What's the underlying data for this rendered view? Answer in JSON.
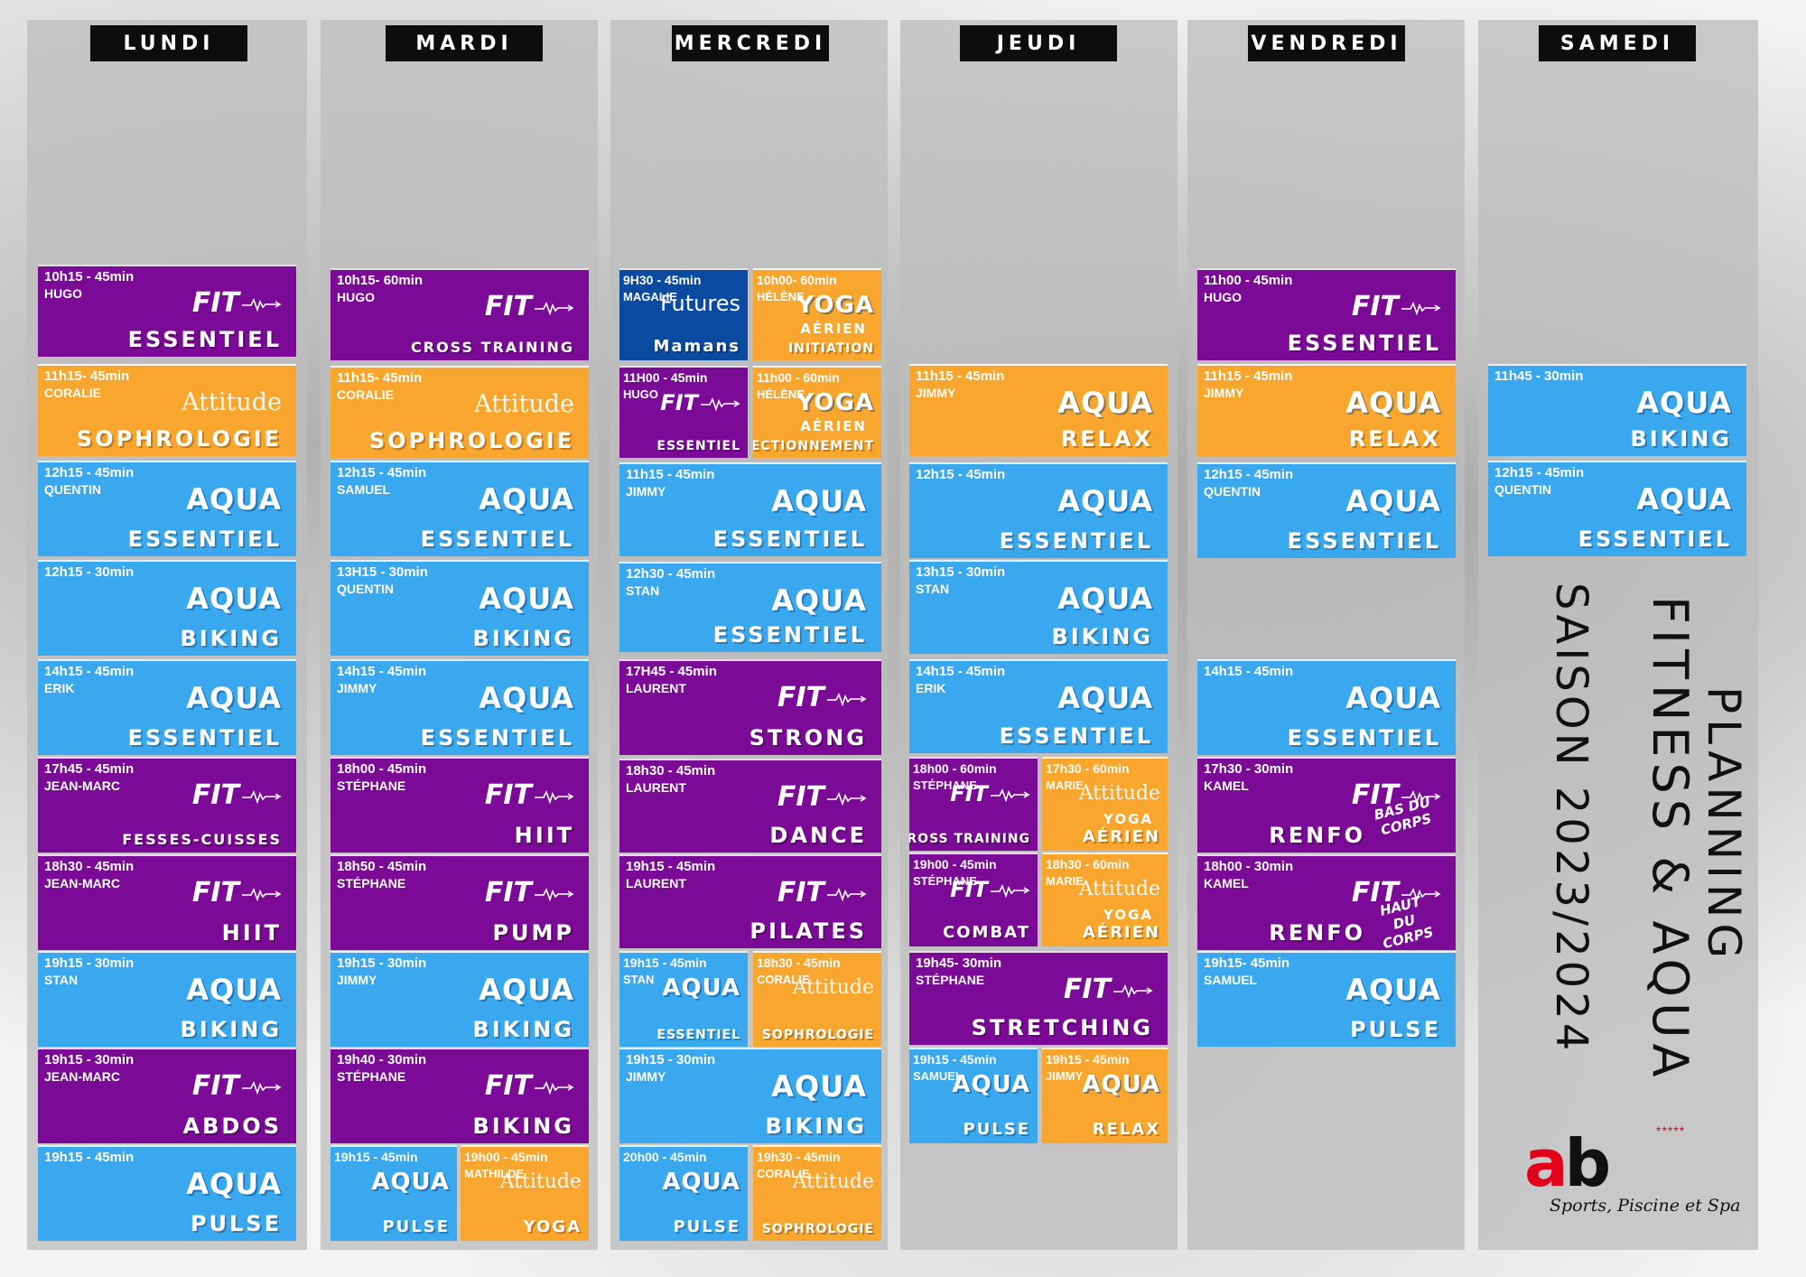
{
  "days": [
    "LUNDI",
    "MARDI",
    "MERCREDI",
    "JEUDI",
    "VENDREDI",
    "SAMEDI"
  ],
  "title": {
    "line1": "PLANNING",
    "line2": "FITNESS & AQUA",
    "season": "SAISON 2023/2024"
  },
  "logo": {
    "mark_a": "a",
    "mark_b": "b",
    "stars": "*****",
    "tagline": "Sports, Piscine et Spa"
  },
  "colors": {
    "fit": "#7b0a96",
    "aqua": "#3aa8ee",
    "attitude": "#f8a62e",
    "futures": "#0b4aa1"
  },
  "classes": [
    {
      "day": 0,
      "time": "10h15 - 45min",
      "coach": "HUGO",
      "brand": "FIT",
      "name": "ESSENTIEL",
      "color": "purple"
    },
    {
      "day": 0,
      "time": "11h15- 45min",
      "coach": "CORALIE",
      "brand": "Attitude",
      "name": "SOPHROLOGIE",
      "color": "orange"
    },
    {
      "day": 0,
      "time": "12h15 - 45min",
      "coach": "QUENTIN",
      "brand": "AQUA",
      "name": "ESSENTIEL",
      "color": "blue"
    },
    {
      "day": 0,
      "time": "12h15 - 30min",
      "coach": "",
      "brand": "AQUA",
      "name": "BIKING",
      "color": "blue"
    },
    {
      "day": 0,
      "time": "14h15 - 45min",
      "coach": "ERIK",
      "brand": "AQUA",
      "name": "ESSENTIEL",
      "color": "blue"
    },
    {
      "day": 0,
      "time": "17h45 - 45min",
      "coach": "JEAN-MARC",
      "brand": "FIT",
      "name": "FESSES-CUISSES",
      "color": "purple"
    },
    {
      "day": 0,
      "time": "18h30 - 45min",
      "coach": "JEAN-MARC",
      "brand": "FIT",
      "name": "HIIT",
      "color": "purple"
    },
    {
      "day": 0,
      "time": "19h15 - 30min",
      "coach": "STAN",
      "brand": "AQUA",
      "name": "BIKING",
      "color": "blue"
    },
    {
      "day": 0,
      "time": "19h15 - 30min",
      "coach": "JEAN-MARC",
      "brand": "FIT",
      "name": "ABDOS",
      "color": "purple"
    },
    {
      "day": 0,
      "time": "19h15 - 45min",
      "coach": "",
      "brand": "AQUA",
      "name": "PULSE",
      "color": "blue"
    },
    {
      "day": 1,
      "time": "10h15- 60min",
      "coach": "HUGO",
      "brand": "FIT",
      "name": "CROSS TRAINING",
      "color": "purple"
    },
    {
      "day": 1,
      "time": "11h15- 45min",
      "coach": "CORALIE",
      "brand": "Attitude",
      "name": "SOPHROLOGIE",
      "color": "orange"
    },
    {
      "day": 1,
      "time": "12h15 - 45min",
      "coach": "SAMUEL",
      "brand": "AQUA",
      "name": "ESSENTIEL",
      "color": "blue"
    },
    {
      "day": 1,
      "time": "13H15 - 30min",
      "coach": "QUENTIN",
      "brand": "AQUA",
      "name": "BIKING",
      "color": "blue"
    },
    {
      "day": 1,
      "time": "14h15 - 45min",
      "coach": "JIMMY",
      "brand": "AQUA",
      "name": "ESSENTIEL",
      "color": "blue"
    },
    {
      "day": 1,
      "time": "18h00 - 45min",
      "coach": "STÉPHANE",
      "brand": "FIT",
      "name": "HIIT",
      "color": "purple"
    },
    {
      "day": 1,
      "time": "18h50 - 45min",
      "coach": "STÉPHANE",
      "brand": "FIT",
      "name": "PUMP",
      "color": "purple"
    },
    {
      "day": 1,
      "time": "19h15 - 30min",
      "coach": "JIMMY",
      "brand": "AQUA",
      "name": "BIKING",
      "color": "blue"
    },
    {
      "day": 1,
      "time": "19h40 - 30min",
      "coach": "STÉPHANE",
      "brand": "FIT",
      "name": "BIKING",
      "color": "purple"
    },
    {
      "day": 1,
      "time": "19h15 - 45min",
      "coach": "",
      "brand": "AQUA",
      "name": "PULSE",
      "color": "blue"
    },
    {
      "day": 1,
      "time": "19h00 - 45min",
      "coach": "MATHILDE",
      "brand": "Attitude",
      "name": "YOGA",
      "color": "orange"
    },
    {
      "day": 2,
      "time": "9H30 - 45min",
      "coach": "MAGALIE",
      "brand": "Futures",
      "name": "Mamans",
      "color": "navy"
    },
    {
      "day": 2,
      "time": "10h00- 60min",
      "coach": "HÉLÈNE",
      "brand": "YOGA",
      "sub": "AÉRIEN",
      "name": "INITIATION",
      "color": "orange"
    },
    {
      "day": 2,
      "time": "11H00 - 45min",
      "coach": "HUGO",
      "brand": "FIT",
      "name": "ESSENTIEL",
      "color": "purple"
    },
    {
      "day": 2,
      "time": "11h00 - 60min",
      "coach": "HÉLÈNE",
      "brand": "YOGA",
      "sub": "AÉRIEN",
      "name": "PERFECTIONNEMENT",
      "color": "orange"
    },
    {
      "day": 2,
      "time": "11h15 - 45min",
      "coach": "JIMMY",
      "brand": "AQUA",
      "name": "ESSENTIEL",
      "color": "blue"
    },
    {
      "day": 2,
      "time": "12h30 - 45min",
      "coach": "STAN",
      "brand": "AQUA",
      "name": "ESSENTIEL",
      "color": "blue"
    },
    {
      "day": 2,
      "time": "17H45 - 45min",
      "coach": "LAURENT",
      "brand": "FIT",
      "name": "STRONG",
      "color": "purple"
    },
    {
      "day": 2,
      "time": "18h30 - 45min",
      "coach": "LAURENT",
      "brand": "FIT",
      "name": "DANCE",
      "color": "purple"
    },
    {
      "day": 2,
      "time": "19h15 - 45min",
      "coach": "LAURENT",
      "brand": "FIT",
      "name": "PILATES",
      "color": "purple"
    },
    {
      "day": 2,
      "time": "19h15 - 45min",
      "coach": "STAN",
      "brand": "AQUA",
      "name": "ESSENTIEL",
      "color": "blue"
    },
    {
      "day": 2,
      "time": "18h30 - 45min",
      "coach": "CORALIE",
      "brand": "Attitude",
      "name": "SOPHROLOGIE",
      "color": "orange"
    },
    {
      "day": 2,
      "time": "19h15 - 30min",
      "coach": "JIMMY",
      "brand": "AQUA",
      "name": "BIKING",
      "color": "blue"
    },
    {
      "day": 2,
      "time": "20h00 - 45min",
      "coach": "",
      "brand": "AQUA",
      "name": "PULSE",
      "color": "blue"
    },
    {
      "day": 2,
      "time": "19h30 - 45min",
      "coach": "CORALIE",
      "brand": "Attitude",
      "name": "SOPHROLOGIE",
      "color": "orange"
    },
    {
      "day": 3,
      "time": "11h15 - 45min",
      "coach": "JIMMY",
      "brand": "AQUA",
      "name": "RELAX",
      "color": "orange"
    },
    {
      "day": 3,
      "time": "12h15 - 45min",
      "coach": "",
      "brand": "AQUA",
      "name": "ESSENTIEL",
      "color": "blue"
    },
    {
      "day": 3,
      "time": "13h15 - 30min",
      "coach": "STAN",
      "brand": "AQUA",
      "name": "BIKING",
      "color": "blue"
    },
    {
      "day": 3,
      "time": "14h15 - 45min",
      "coach": "ERIK",
      "brand": "AQUA",
      "name": "ESSENTIEL",
      "color": "blue"
    },
    {
      "day": 3,
      "time": "18h00 - 60min",
      "coach": "STÉPHANE",
      "brand": "FIT",
      "name": "CROSS TRAINING",
      "color": "purple"
    },
    {
      "day": 3,
      "time": "17h30 - 60min",
      "coach": "MARIE",
      "brand": "Attitude",
      "sub": "YOGA",
      "name": "AÉRIEN",
      "color": "orange"
    },
    {
      "day": 3,
      "time": "19h00 - 45min",
      "coach": "STÉPHANE",
      "brand": "FIT",
      "name": "COMBAT",
      "color": "purple"
    },
    {
      "day": 3,
      "time": "18h30 - 60min",
      "coach": "MARIE",
      "brand": "Attitude",
      "sub": "YOGA",
      "name": "AÉRIEN",
      "color": "orange"
    },
    {
      "day": 3,
      "time": "19h45- 30min",
      "coach": "STÉPHANE",
      "brand": "FIT",
      "name": "STRETCHING",
      "color": "purple"
    },
    {
      "day": 3,
      "time": "19h15 - 45min",
      "coach": "SAMUEL",
      "brand": "AQUA",
      "name": "PULSE",
      "color": "blue"
    },
    {
      "day": 3,
      "time": "19h15 - 45min",
      "coach": "JIMMY",
      "brand": "AQUA",
      "name": "RELAX",
      "color": "orange"
    },
    {
      "day": 4,
      "time": "11h00 - 45min",
      "coach": "HUGO",
      "brand": "FIT",
      "name": "ESSENTIEL",
      "color": "purple"
    },
    {
      "day": 4,
      "time": "11h15 - 45min",
      "coach": "JIMMY",
      "brand": "AQUA",
      "name": "RELAX",
      "color": "orange"
    },
    {
      "day": 4,
      "time": "12h15 - 45min",
      "coach": "QUENTIN",
      "brand": "AQUA",
      "name": "ESSENTIEL",
      "color": "blue"
    },
    {
      "day": 4,
      "time": "14h15 - 45min",
      "coach": "",
      "brand": "AQUA",
      "name": "ESSENTIEL",
      "color": "blue"
    },
    {
      "day": 4,
      "time": "17h30 - 30min",
      "coach": "KAMEL",
      "brand": "FIT",
      "name": "RENFO",
      "side": "BAS DU CORPS",
      "color": "purple"
    },
    {
      "day": 4,
      "time": "18h00 - 30min",
      "coach": "KAMEL",
      "brand": "FIT",
      "name": "RENFO",
      "side": "HAUT DU CORPS",
      "color": "purple"
    },
    {
      "day": 4,
      "time": "19h15- 45min",
      "coach": "SAMUEL",
      "brand": "AQUA",
      "name": "PULSE",
      "color": "blue"
    },
    {
      "day": 5,
      "time": "11h45 - 30min",
      "coach": "",
      "brand": "AQUA",
      "name": "BIKING",
      "color": "blue"
    },
    {
      "day": 5,
      "time": "12h15 - 45min",
      "coach": "QUENTIN",
      "brand": "AQUA",
      "name": "ESSENTIEL",
      "color": "blue"
    }
  ]
}
